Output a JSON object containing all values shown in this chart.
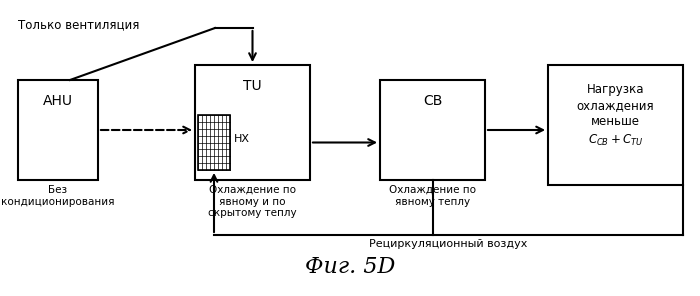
{
  "background_color": "#ffffff",
  "title": "Фиг. 5D",
  "title_fontsize": 16,
  "top_label": "Только вентиляция",
  "recirc_label": "Рециркуляционный воздух",
  "hx_label": "HX",
  "ahu_label": "AHU",
  "ahu_sub": "Без\nкондиционирования",
  "tu_label": "TU",
  "tu_sub": "Охлаждение по\nявному и по\nскрытому теплу",
  "cb_label": "CB",
  "cb_sub": "Охлаждение по\nявному теплу",
  "load_line1": "Нагрузка",
  "load_line2": "охлаждения",
  "load_line3": "меньше",
  "load_line4": "$C_{CB} + C_{TU}$"
}
